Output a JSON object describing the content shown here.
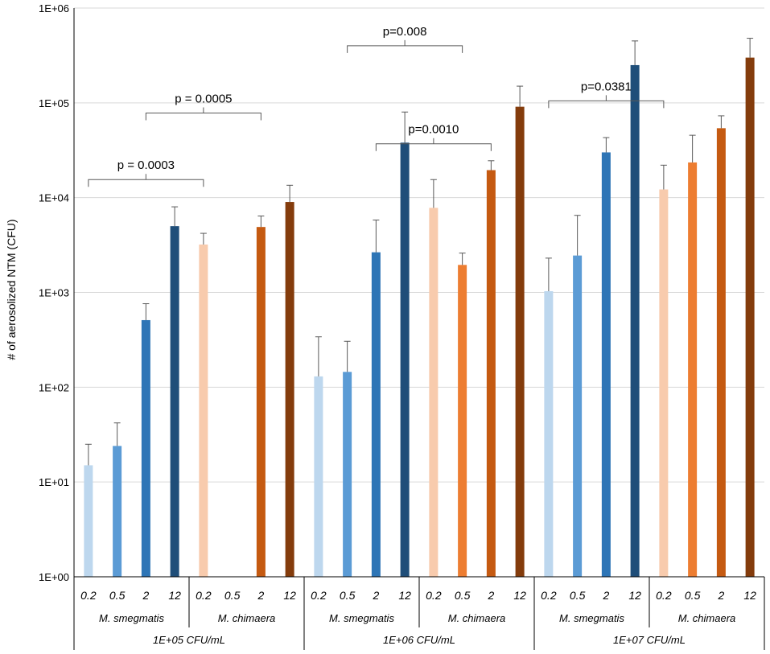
{
  "chart_data": {
    "type": "bar",
    "yscale": "log",
    "ylabel": "# of aerosolized NTM (CFU)",
    "ylim": [
      1,
      1000000
    ],
    "y_ticks": [
      "1E+00",
      "1E+01",
      "1E+02",
      "1E+03",
      "1E+04",
      "1E+05",
      "1E+06"
    ],
    "grid": true,
    "groups": [
      {
        "concentration": "1E+05 CFU/mL",
        "species": [
          {
            "name": "M. smegmatis",
            "bars": [
              {
                "category": "0.2",
                "value": 15,
                "error_upper": 25,
                "color": "#bdd7ee"
              },
              {
                "category": "0.5",
                "value": 24,
                "error_upper": 42,
                "color": "#5b9bd5"
              },
              {
                "category": "2",
                "value": 510,
                "error_upper": 760,
                "color": "#2e75b6"
              },
              {
                "category": "12",
                "value": 5000,
                "error_upper": 8000,
                "color": "#1f4e79"
              }
            ]
          },
          {
            "name": "M. chimaera",
            "bars": [
              {
                "category": "0.2",
                "value": 3200,
                "error_upper": 4200,
                "color": "#f8cbad"
              },
              {
                "category": "0.5",
                "value": null,
                "error_upper": null,
                "color": "#ed7d31"
              },
              {
                "category": "2",
                "value": 4900,
                "error_upper": 6400,
                "color": "#c55a11"
              },
              {
                "category": "12",
                "value": 9000,
                "error_upper": 13500,
                "color": "#843c0c"
              }
            ]
          }
        ]
      },
      {
        "concentration": "1E+06 CFU/mL",
        "species": [
          {
            "name": "M. smegmatis",
            "bars": [
              {
                "category": "0.2",
                "value": 130,
                "error_upper": 340,
                "color": "#bdd7ee"
              },
              {
                "category": "0.5",
                "value": 145,
                "error_upper": 305,
                "color": "#5b9bd5"
              },
              {
                "category": "2",
                "value": 2650,
                "error_upper": 5800,
                "color": "#2e75b6"
              },
              {
                "category": "12",
                "value": 38000,
                "error_upper": 80000,
                "color": "#1f4e79"
              }
            ]
          },
          {
            "name": "M. chimaera",
            "bars": [
              {
                "category": "0.2",
                "value": 7800,
                "error_upper": 15500,
                "color": "#f8cbad"
              },
              {
                "category": "0.5",
                "value": 1950,
                "error_upper": 2600,
                "color": "#ed7d31"
              },
              {
                "category": "2",
                "value": 19500,
                "error_upper": 24500,
                "color": "#c55a11"
              },
              {
                "category": "12",
                "value": 91000,
                "error_upper": 150000,
                "color": "#843c0c"
              }
            ]
          }
        ]
      },
      {
        "concentration": "1E+07 CFU/mL",
        "species": [
          {
            "name": "M. smegmatis",
            "bars": [
              {
                "category": "0.2",
                "value": 1030,
                "error_upper": 2300,
                "color": "#bdd7ee"
              },
              {
                "category": "0.5",
                "value": 2450,
                "error_upper": 6500,
                "color": "#5b9bd5"
              },
              {
                "category": "2",
                "value": 30000,
                "error_upper": 43000,
                "color": "#2e75b6"
              },
              {
                "category": "12",
                "value": 250000,
                "error_upper": 450000,
                "color": "#1f4e79"
              }
            ]
          },
          {
            "name": "M. chimaera",
            "bars": [
              {
                "category": "0.2",
                "value": 12200,
                "error_upper": 22000,
                "color": "#f8cbad"
              },
              {
                "category": "0.5",
                "value": 23500,
                "error_upper": 45500,
                "color": "#ed7d31"
              },
              {
                "category": "2",
                "value": 54000,
                "error_upper": 73000,
                "color": "#c55a11"
              },
              {
                "category": "12",
                "value": 300000,
                "error_upper": 480000,
                "color": "#843c0c"
              }
            ]
          }
        ]
      }
    ],
    "annotations": [
      {
        "text": "p = 0.0003",
        "from_bar": 0,
        "to_bar": 4,
        "y_value": 15500
      },
      {
        "text": "p = 0.0005",
        "from_bar": 2,
        "to_bar": 6,
        "y_value": 78000
      },
      {
        "text": "p=0.008",
        "from_bar": 9,
        "to_bar": 13,
        "y_value": 400000
      },
      {
        "text": "p=0.0010",
        "from_bar": 10,
        "to_bar": 14,
        "y_value": 37000
      },
      {
        "text": "p=0.0381",
        "from_bar": 16,
        "to_bar": 20,
        "y_value": 105000
      }
    ]
  }
}
